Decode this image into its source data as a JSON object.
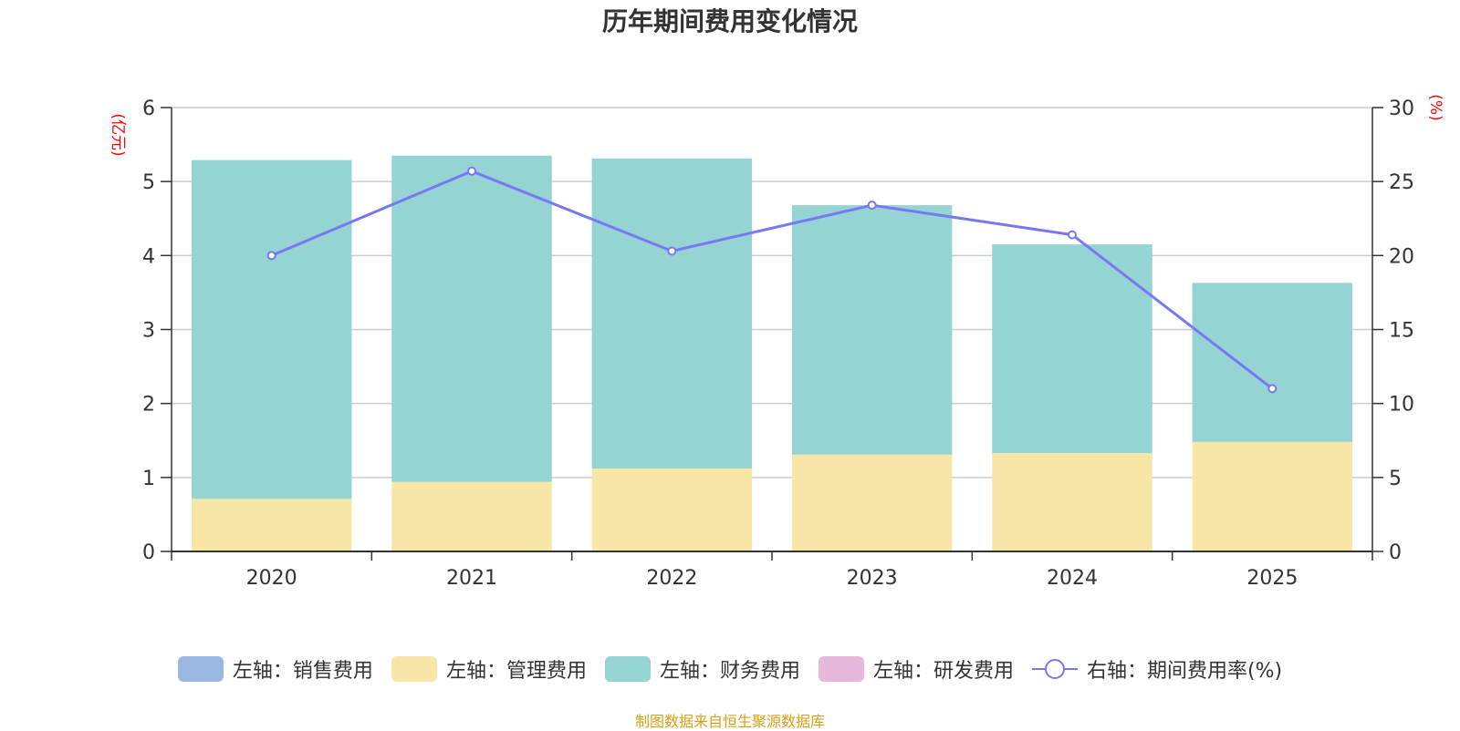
{
  "title": "历年期间费用变化情况",
  "source_note": "制图数据来自恒生聚源数据库",
  "colors": {
    "sales": "#9bb8e2",
    "admin": "#f7e6a6",
    "finance": "#96d3d3",
    "rd": "#e8b8da",
    "rate": "#7779f3",
    "axis_label": "#ff0000",
    "grid": "#cccccc",
    "axis": "#333333"
  },
  "chart_data": {
    "type": "bar",
    "stacked": true,
    "categories": [
      "2020",
      "2021",
      "2022",
      "2023",
      "2024",
      "2025"
    ],
    "left_axis": {
      "label": "(亿元)",
      "ylim": [
        0,
        6
      ],
      "ticks": [
        "0",
        "1",
        "2",
        "3",
        "4",
        "5",
        "6"
      ]
    },
    "right_axis": {
      "label": "(%)",
      "ylim": [
        0,
        30
      ],
      "ticks": [
        "0",
        "5",
        "10",
        "15",
        "20",
        "25",
        "30"
      ]
    },
    "series": [
      {
        "name": "左轴：销售费用",
        "key": "sales",
        "axis": "left",
        "type": "bar",
        "values": [
          0,
          0,
          0,
          0,
          0,
          0
        ]
      },
      {
        "name": "左轴：管理费用",
        "key": "admin",
        "axis": "left",
        "type": "bar",
        "values": [
          0.71,
          0.94,
          1.12,
          1.31,
          1.33,
          1.48
        ]
      },
      {
        "name": "左轴：财务费用",
        "key": "finance",
        "axis": "left",
        "type": "bar",
        "values": [
          4.58,
          4.41,
          4.19,
          3.37,
          2.82,
          2.15
        ]
      },
      {
        "name": "左轴：研发费用",
        "key": "rd",
        "axis": "left",
        "type": "bar",
        "values": [
          0,
          0,
          0,
          0,
          0,
          0
        ]
      },
      {
        "name": "右轴：期间费用率(%)",
        "key": "rate",
        "axis": "right",
        "type": "line",
        "values": [
          20.0,
          25.7,
          20.3,
          23.4,
          21.4,
          11.0
        ]
      }
    ]
  },
  "legend": [
    {
      "label": "左轴：销售费用",
      "key": "sales",
      "kind": "box"
    },
    {
      "label": "左轴：管理费用",
      "key": "admin",
      "kind": "box"
    },
    {
      "label": "左轴：财务费用",
      "key": "finance",
      "kind": "box"
    },
    {
      "label": "左轴：研发费用",
      "key": "rd",
      "kind": "box"
    },
    {
      "label": "右轴：期间费用率(%)",
      "key": "rate",
      "kind": "line"
    }
  ]
}
